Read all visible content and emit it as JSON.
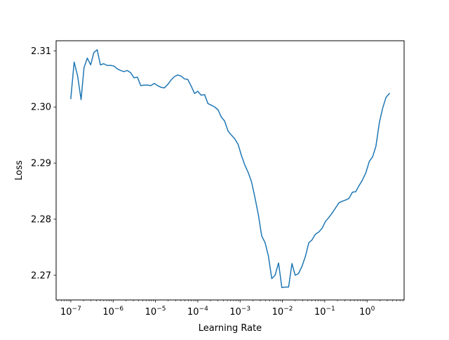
{
  "chart_data": {
    "type": "line",
    "title": "",
    "xlabel": "Learning Rate",
    "ylabel": "Loss",
    "x_scale": "log",
    "xlim": [
      4.5e-08,
      7.5
    ],
    "ylim": [
      2.2656,
      2.3118
    ],
    "x_ticks": [
      {
        "value": 1e-07,
        "base": "10",
        "exp": "−7"
      },
      {
        "value": 1e-06,
        "base": "10",
        "exp": "−6"
      },
      {
        "value": 1e-05,
        "base": "10",
        "exp": "−5"
      },
      {
        "value": 0.0001,
        "base": "10",
        "exp": "−4"
      },
      {
        "value": 0.001,
        "base": "10",
        "exp": "−3"
      },
      {
        "value": 0.01,
        "base": "10",
        "exp": "−2"
      },
      {
        "value": 0.1,
        "base": "10",
        "exp": "−1"
      },
      {
        "value": 1,
        "base": "10",
        "exp": "0"
      }
    ],
    "y_ticks": [
      {
        "value": 2.27,
        "label": "2.27"
      },
      {
        "value": 2.28,
        "label": "2.28"
      },
      {
        "value": 2.29,
        "label": "2.29"
      },
      {
        "value": 2.3,
        "label": "2.30"
      },
      {
        "value": 2.31,
        "label": "2.31"
      }
    ],
    "grid": false,
    "color": "#1f77b4",
    "series": [
      {
        "x": [
          1e-07,
          1.2e-07,
          1.45e-07,
          1.75e-07,
          2.05e-07,
          2.45e-07,
          2.95e-07,
          3.5e-07,
          4.2e-07,
          5e-07,
          6e-07,
          7.2e-07,
          8.7e-07,
          1.04e-06,
          1.25e-06,
          1.5e-06,
          1.8e-06,
          2.16e-06,
          2.6e-06,
          3.1e-06,
          3.75e-06,
          4.5e-06,
          5.4e-06,
          6.5e-06,
          7.8e-06,
          9.4e-06,
          1.13e-05,
          1.35e-05,
          1.62e-05,
          1.95e-05,
          2.34e-05,
          2.8e-05,
          3.37e-05,
          4.04e-05,
          4.85e-05,
          5.8e-05,
          7e-05,
          8.4e-05,
          0.0001,
          0.00012,
          0.000145,
          0.000174,
          0.00021,
          0.00025,
          0.0003,
          0.00036,
          0.00043,
          0.00052,
          0.00062,
          0.00075,
          0.0009,
          0.00108,
          0.0013,
          0.00156,
          0.00187,
          0.00225,
          0.0027,
          0.00324,
          0.0039,
          0.00467,
          0.0056,
          0.0067,
          0.0081,
          0.0097,
          0.0116,
          0.014,
          0.0168,
          0.02,
          0.024,
          0.029,
          0.035,
          0.042,
          0.05,
          0.06,
          0.072,
          0.087,
          0.104,
          0.125,
          0.15,
          0.18,
          0.216,
          0.26,
          0.31,
          0.375,
          0.45,
          0.54,
          0.65,
          0.78,
          0.94,
          1.13,
          1.35,
          1.62,
          1.95,
          2.34,
          2.8,
          3.37
        ],
        "y": [
          2.3015,
          2.308,
          2.3055,
          2.3013,
          2.307,
          2.3087,
          2.3075,
          2.3097,
          2.3102,
          2.3075,
          2.3077,
          2.3074,
          2.3074,
          2.3073,
          2.3068,
          2.3065,
          2.3063,
          2.3065,
          2.3061,
          2.3052,
          2.3053,
          2.3038,
          2.3039,
          2.3039,
          2.3038,
          2.3042,
          2.3038,
          2.3035,
          2.3034,
          2.304,
          2.3048,
          2.3054,
          2.3057,
          2.3055,
          2.305,
          2.3049,
          2.3037,
          2.3024,
          2.3028,
          2.3021,
          2.3022,
          2.3006,
          2.3003,
          2.3,
          2.2995,
          2.2982,
          2.2975,
          2.2957,
          2.295,
          2.2943,
          2.2933,
          2.2913,
          2.2896,
          2.2883,
          2.2866,
          2.2838,
          2.2808,
          2.277,
          2.2758,
          2.2734,
          2.2694,
          2.27,
          2.2722,
          2.2678,
          2.2679,
          2.2679,
          2.2721,
          2.27,
          2.2703,
          2.2716,
          2.2734,
          2.2758,
          2.2763,
          2.2773,
          2.2777,
          2.2784,
          2.2796,
          2.2803,
          2.2811,
          2.282,
          2.2829,
          2.2832,
          2.2834,
          2.2837,
          2.2848,
          2.2849,
          2.286,
          2.287,
          2.2883,
          2.2903,
          2.2911,
          2.293,
          2.2972,
          2.2998,
          2.3017,
          2.3024
        ]
      }
    ]
  }
}
